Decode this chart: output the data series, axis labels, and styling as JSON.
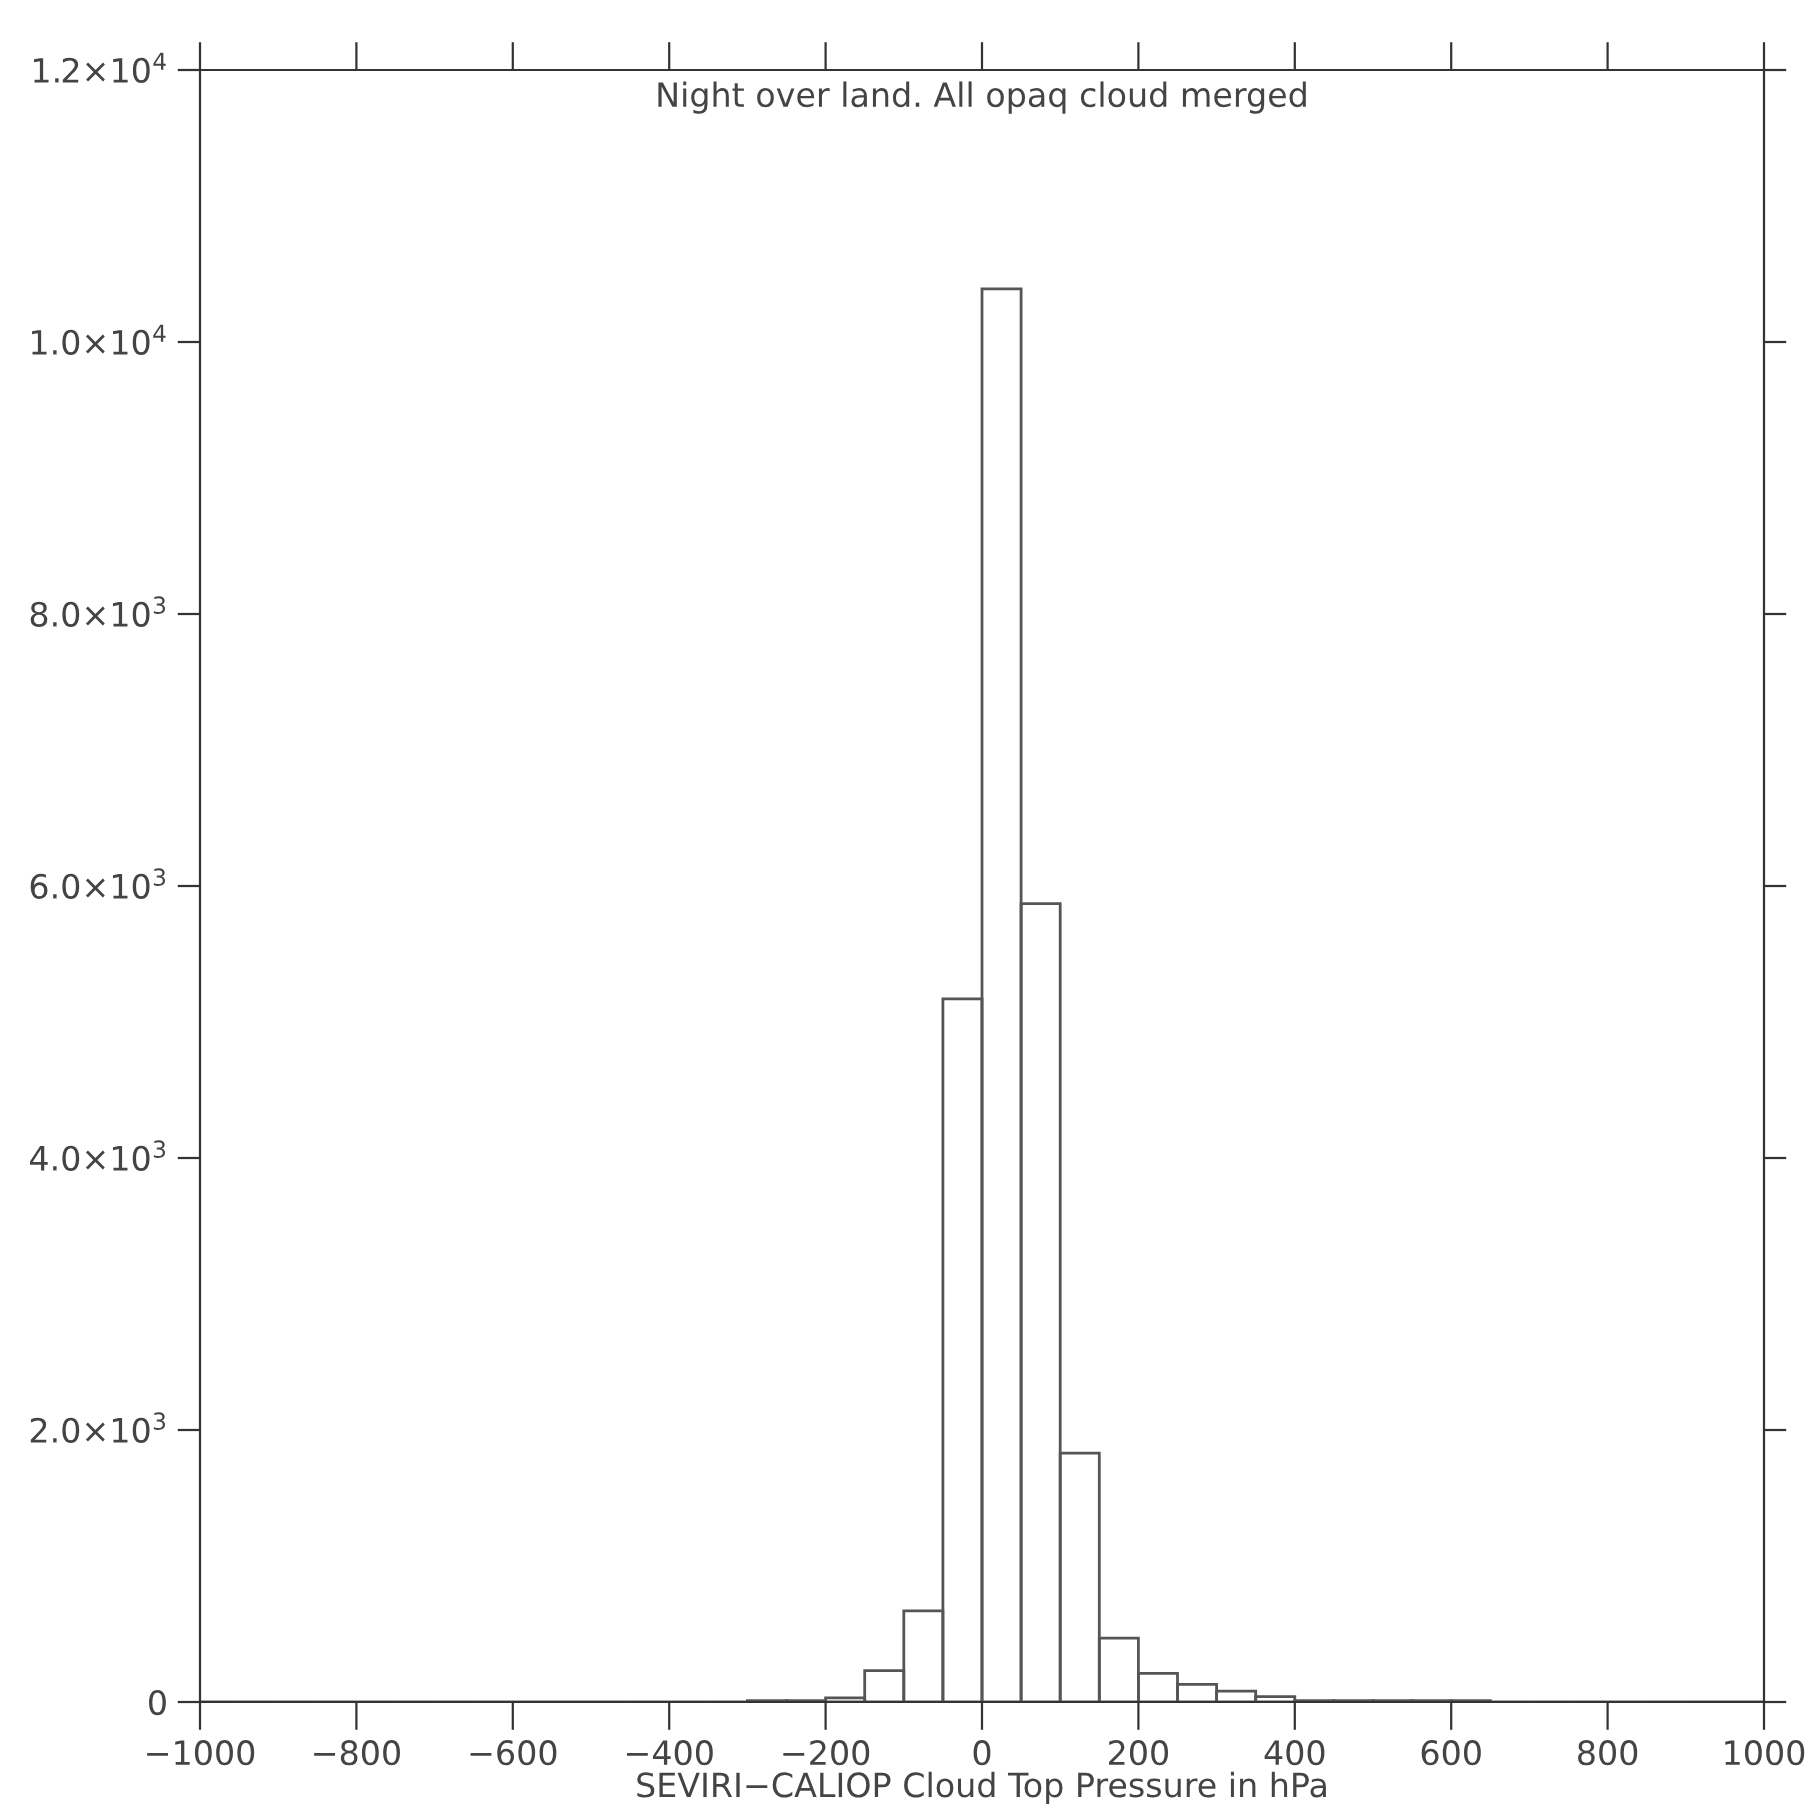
{
  "chart_data": {
    "type": "histogram",
    "title": "Night over land. All opaq cloud merged",
    "xlabel": "SEVIRI−CALIOP Cloud Top Pressure in hPa",
    "bins": [
      -1000,
      -950,
      -900,
      -850,
      -800,
      -750,
      -700,
      -650,
      -600,
      -550,
      -500,
      -450,
      -400,
      -350,
      -300,
      -250,
      -200,
      -150,
      -100,
      -50,
      0,
      50,
      100,
      150,
      200,
      250,
      300,
      350,
      400,
      450,
      500,
      550,
      600,
      650,
      700,
      750,
      800,
      850,
      900,
      950,
      1000
    ],
    "values": [
      0,
      0,
      0,
      0,
      0,
      0,
      0,
      0,
      0,
      0,
      0,
      0,
      0,
      0,
      10,
      10,
      30,
      230,
      670,
      5170,
      10390,
      5870,
      1830,
      470,
      210,
      130,
      80,
      40,
      10,
      10,
      10,
      10,
      10,
      0,
      0,
      0,
      0,
      0,
      0,
      0
    ],
    "color": "#555555",
    "xlim": [
      -1000,
      1000
    ],
    "ylim": [
      0,
      12000
    ],
    "xticks": [
      {
        "value": -1000,
        "label": "−1000"
      },
      {
        "value": -800,
        "label": "−800"
      },
      {
        "value": -600,
        "label": "−600"
      },
      {
        "value": -400,
        "label": "−400"
      },
      {
        "value": -200,
        "label": "−200"
      },
      0,
      200,
      400,
      600,
      800,
      1000
    ],
    "yticks": [
      0,
      {
        "value": 2000,
        "label": "2.0×10$^{3}$"
      },
      {
        "value": 4000,
        "label": "4.0×10$^{3}$"
      },
      {
        "value": 6000,
        "label": "6.0×10$^{3}$"
      },
      {
        "value": 8000,
        "label": "8.0×10$^{3}$"
      },
      {
        "value": 10000,
        "label": "1.0×10$^{4}$"
      },
      {
        "value": 12000,
        "label": "1.2×10$^{4}$"
      }
    ],
    "grid": false
  }
}
